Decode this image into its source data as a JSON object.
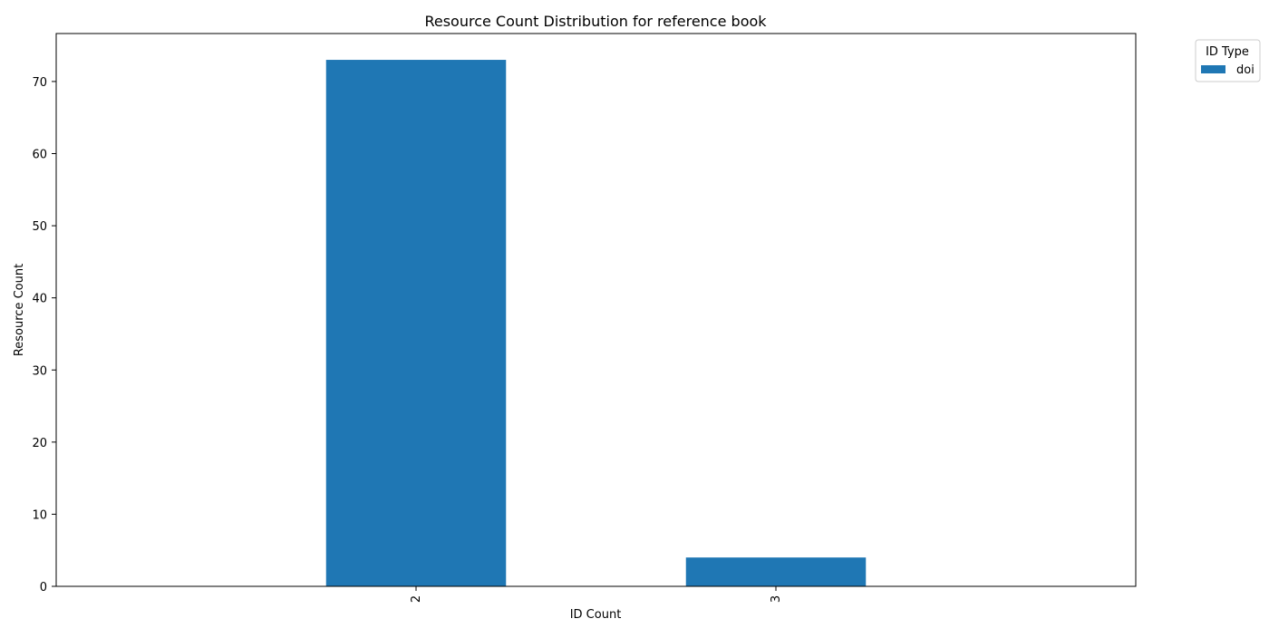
{
  "chart_data": {
    "type": "bar",
    "title": "Resource Count Distribution for reference book",
    "xlabel": "ID Count",
    "ylabel": "Resource Count",
    "categories": [
      "2",
      "3"
    ],
    "series": [
      {
        "name": "doi",
        "values": [
          73,
          4
        ],
        "color": "#1f77b4"
      }
    ],
    "ylim": [
      0,
      76.65
    ],
    "yticks": [
      0,
      10,
      20,
      30,
      40,
      50,
      60,
      70
    ],
    "grid": false,
    "legend": {
      "title": "ID Type",
      "placement": "outside-top-right"
    }
  }
}
